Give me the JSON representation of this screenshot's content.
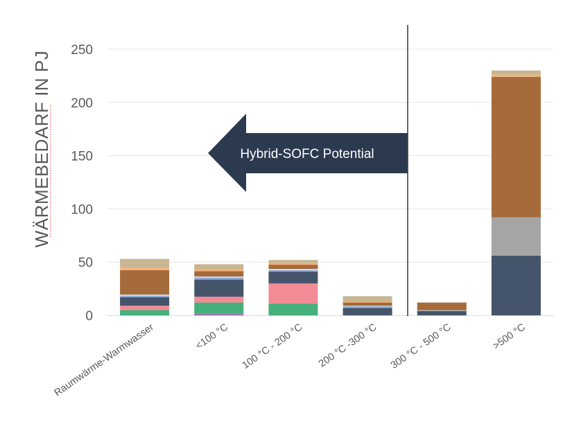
{
  "chart_data": {
    "type": "bar",
    "stacked": true,
    "ylabel": "WÄRMEBEDARF IN PJ",
    "ylim": [
      0,
      270
    ],
    "yticks": [
      0,
      50,
      100,
      150,
      200,
      250
    ],
    "grid": true,
    "categories": [
      "Raumwärme-Warmwasser",
      "<100 °C",
      "100 °C - 200 °C",
      "200 °C -300 °C",
      "300 °C - 500 °C",
      ">500 °C"
    ],
    "series": [
      {
        "color": "#9b72b0",
        "values": [
          0,
          1.5,
          0,
          0,
          0,
          0
        ]
      },
      {
        "color": "#46b07a",
        "values": [
          5,
          10.5,
          11,
          0,
          0,
          0
        ]
      },
      {
        "color": "#f28b95",
        "values": [
          4,
          5.5,
          19,
          0,
          0,
          0
        ]
      },
      {
        "color": "#44546a",
        "values": [
          8,
          16,
          11,
          7,
          4,
          56
        ]
      },
      {
        "color": "#a5a5a5",
        "values": [
          0,
          0,
          0,
          0,
          1,
          36
        ]
      },
      {
        "color": "#8faadc",
        "values": [
          1.5,
          2,
          1.5,
          1.5,
          0,
          0
        ]
      },
      {
        "color": "#dae3f3",
        "values": [
          1,
          1,
          1,
          0.5,
          0,
          0
        ]
      },
      {
        "color": "#a56b3a",
        "values": [
          23,
          5,
          4,
          3,
          7,
          132
        ]
      },
      {
        "color": "#f4b183",
        "values": [
          2,
          1,
          1,
          0.5,
          0,
          1.5
        ]
      },
      {
        "color": "#f7a83e",
        "values": [
          0.5,
          1,
          0.5,
          0.5,
          0,
          0.5
        ]
      },
      {
        "color": "#c7b693",
        "values": [
          8,
          4.5,
          3,
          5,
          0,
          4
        ]
      }
    ]
  },
  "annotation": {
    "text": "Hybrid-SOFC Potential",
    "color": "#2b3a4f"
  }
}
